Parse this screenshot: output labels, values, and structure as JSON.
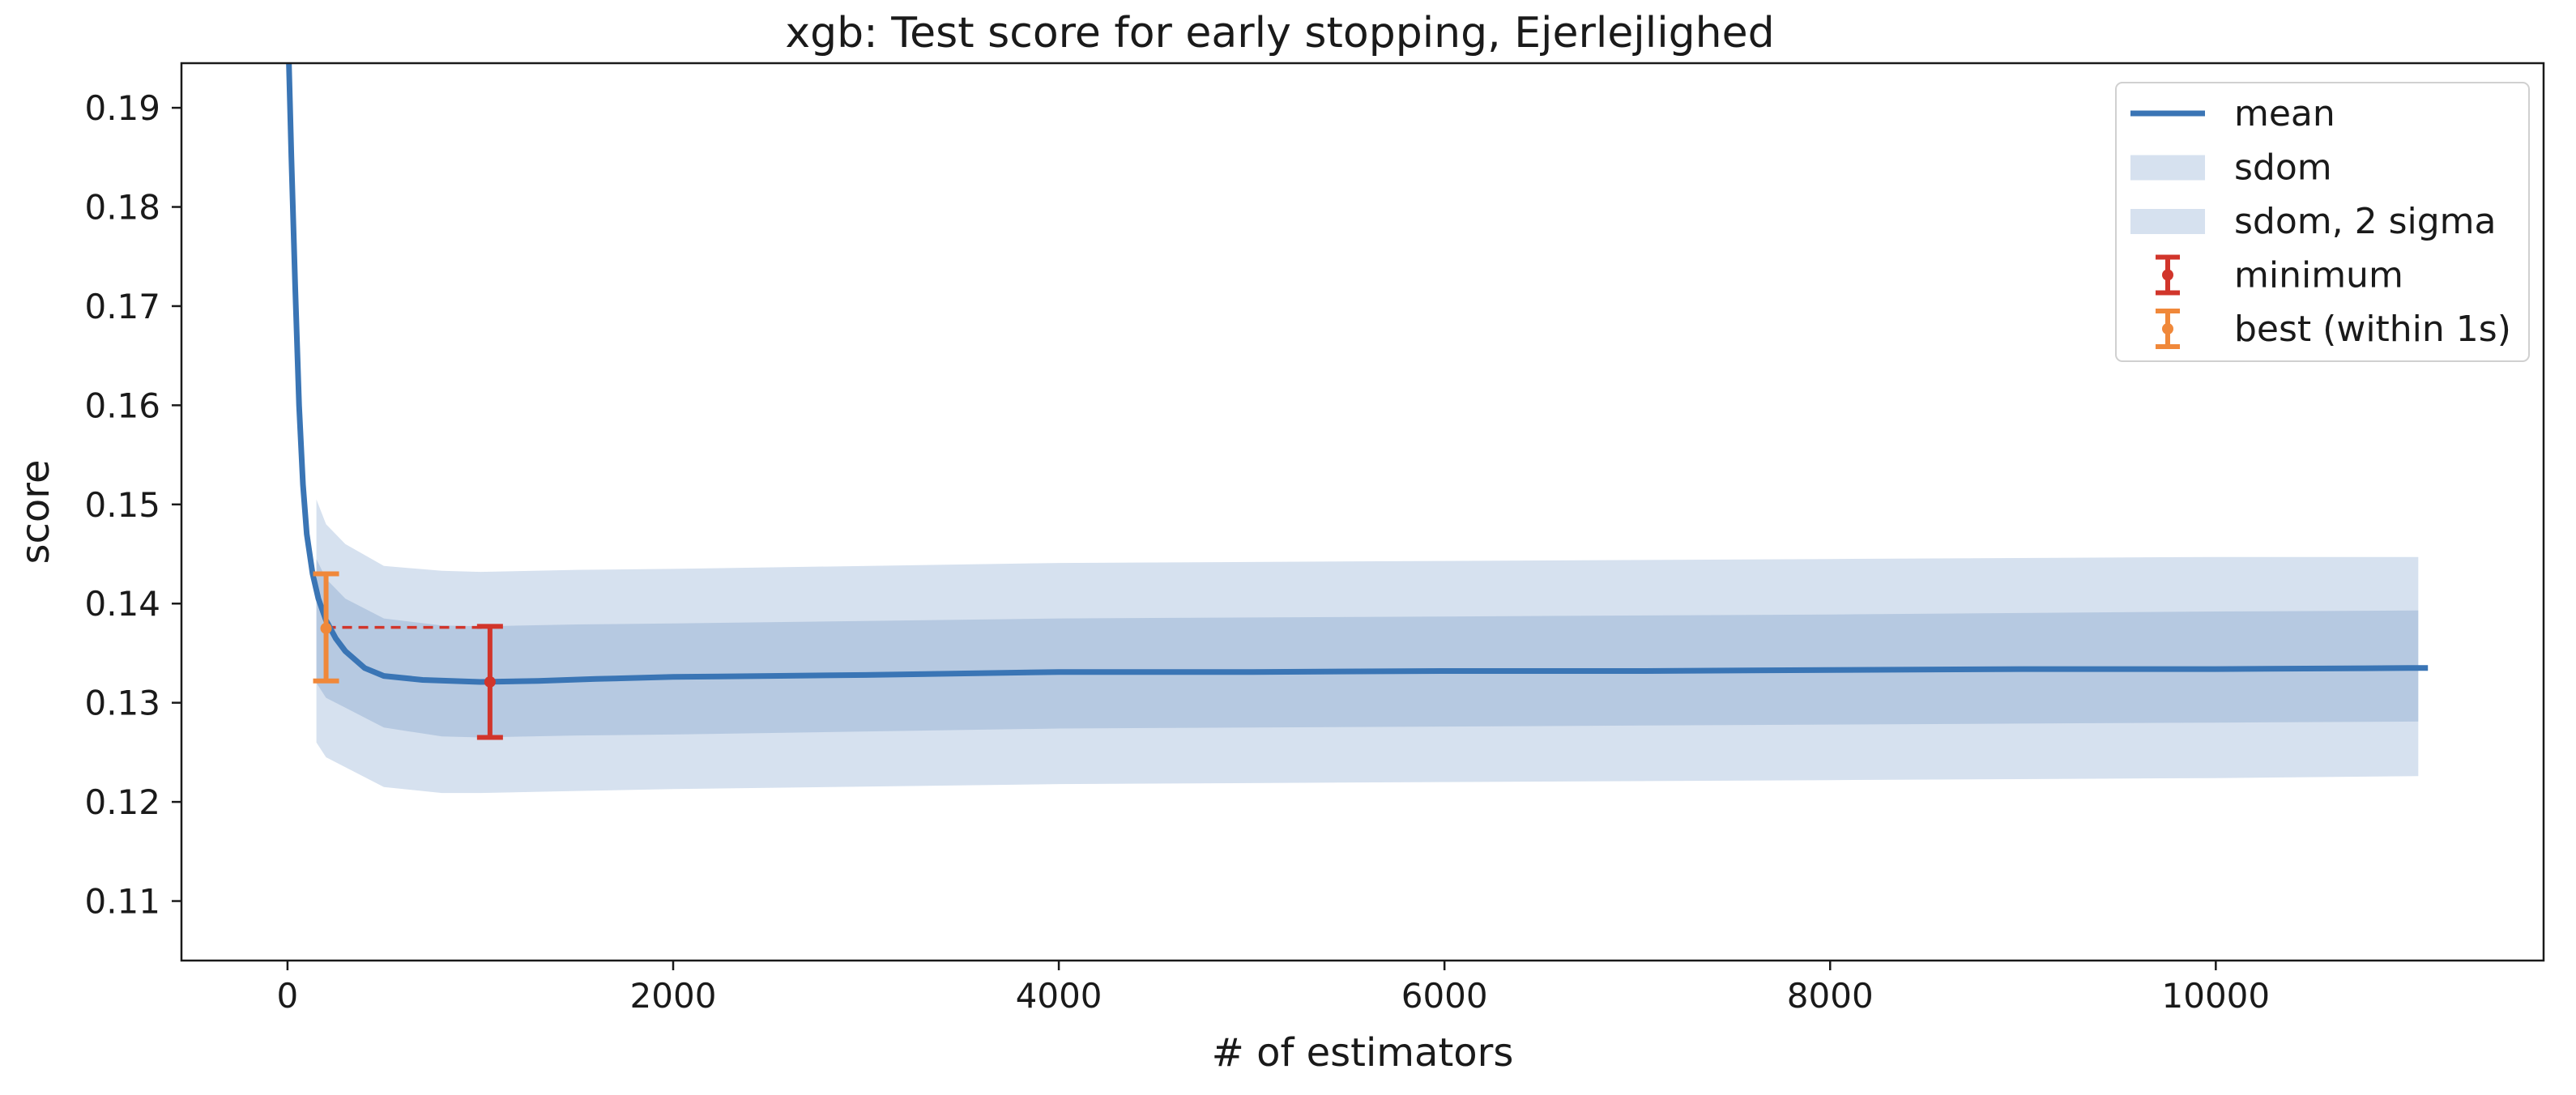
{
  "chart_data": {
    "type": "line",
    "title": "xgb: Test score for early stopping, Ejerlejlighed",
    "xlabel": "# of estimators",
    "ylabel": "score",
    "xlim": [
      -550,
      11700
    ],
    "ylim": [
      0.104,
      0.1945
    ],
    "xticks": [
      0,
      2000,
      4000,
      6000,
      8000,
      10000
    ],
    "yticks": [
      0.11,
      0.12,
      0.13,
      0.14,
      0.15,
      0.16,
      0.17,
      0.18,
      0.19
    ],
    "grid": false,
    "legend_position": "top-right",
    "colors": {
      "mean": "#3a75b5",
      "band_inner": "#9db7d6",
      "band_outer": "#d6e1ef",
      "minimum": "#d1352b",
      "best": "#f0883a"
    },
    "series": [
      {
        "name": "mean",
        "x": [
          0,
          20,
          40,
          60,
          80,
          100,
          130,
          160,
          200,
          250,
          300,
          400,
          500,
          700,
          1000,
          1300,
          1600,
          2000,
          2500,
          3000,
          4000,
          5000,
          6000,
          7000,
          8000,
          9000,
          10000,
          11000,
          11100
        ],
        "y": [
          0.2,
          0.185,
          0.172,
          0.16,
          0.152,
          0.147,
          0.143,
          0.1405,
          0.1383,
          0.1365,
          0.1352,
          0.1335,
          0.1327,
          0.1323,
          0.1321,
          0.1322,
          0.1324,
          0.1326,
          0.1327,
          0.1328,
          0.1331,
          0.1331,
          0.1332,
          0.1332,
          0.1333,
          0.1334,
          0.1334,
          0.1335,
          0.1335
        ]
      },
      {
        "name": "sdom",
        "x": [
          150,
          200,
          300,
          500,
          800,
          1000,
          1500,
          2000,
          4000,
          6000,
          8000,
          10000,
          11050
        ],
        "upper": [
          0.1445,
          0.1425,
          0.1405,
          0.1385,
          0.1378,
          0.1377,
          0.1379,
          0.138,
          0.1385,
          0.1387,
          0.1389,
          0.1392,
          0.1393
        ],
        "lower": [
          0.132,
          0.1305,
          0.1295,
          0.1275,
          0.1266,
          0.1265,
          0.1267,
          0.1268,
          0.1274,
          0.1276,
          0.1278,
          0.128,
          0.1281
        ]
      },
      {
        "name": "sdom, 2 sigma",
        "x": [
          150,
          200,
          300,
          500,
          800,
          1000,
          1500,
          2000,
          4000,
          6000,
          8000,
          10000,
          11050
        ],
        "upper": [
          0.1505,
          0.148,
          0.146,
          0.1438,
          0.1433,
          0.1432,
          0.1434,
          0.1435,
          0.1441,
          0.1443,
          0.1445,
          0.1447,
          0.1447
        ],
        "lower": [
          0.126,
          0.1245,
          0.1235,
          0.1215,
          0.1209,
          0.1209,
          0.1211,
          0.1213,
          0.1218,
          0.122,
          0.1222,
          0.1224,
          0.1226
        ]
      }
    ],
    "minimum": {
      "name": "minimum",
      "x": 1050,
      "y": 0.1321,
      "ylow": 0.1265,
      "yhigh": 0.1377
    },
    "best": {
      "name": "best (within 1s)",
      "x": 200,
      "y": 0.1375,
      "ylow": 0.1322,
      "yhigh": 0.143
    },
    "threshold": {
      "y": 0.1376,
      "x_from": 200,
      "x_to": 1050
    },
    "legend": [
      "mean",
      "sdom",
      "sdom, 2 sigma",
      "minimum",
      "best (within 1s)"
    ]
  }
}
